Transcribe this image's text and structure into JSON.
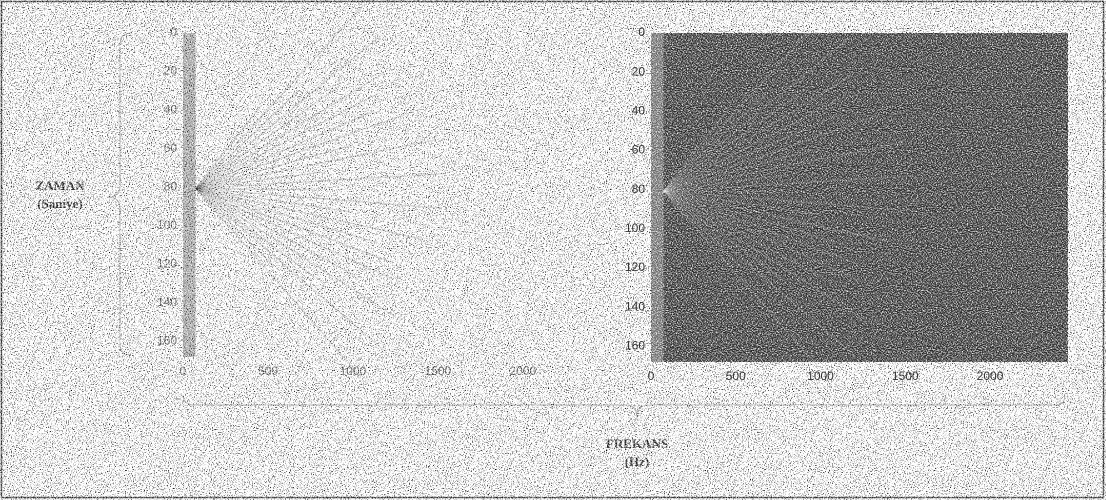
{
  "figure": {
    "y_label_lines": [
      "ZAMAN",
      "(Saniye)"
    ],
    "x_label_lines": [
      "FREKANS",
      "(Hz)"
    ]
  },
  "chart_data": [
    {
      "type": "spectrogram",
      "xlim": [
        0,
        2460
      ],
      "ylim": [
        0,
        168
      ],
      "y_reversed": true,
      "xticks": [
        0,
        500,
        1000,
        1500,
        2000
      ],
      "yticks": [
        0,
        20,
        40,
        60,
        80,
        100,
        120,
        140,
        160
      ],
      "background": "#ffffff",
      "speckle": "#000000",
      "grid": false
    },
    {
      "type": "spectrogram",
      "xlim": [
        0,
        2460
      ],
      "ylim": [
        0,
        168
      ],
      "y_reversed": true,
      "xticks": [
        0,
        500,
        1000,
        1500,
        2000
      ],
      "yticks": [
        0,
        20,
        40,
        60,
        80,
        100,
        120,
        140,
        160
      ],
      "background": "#262626",
      "speckle": "#d8d8d8",
      "grid": false
    }
  ]
}
